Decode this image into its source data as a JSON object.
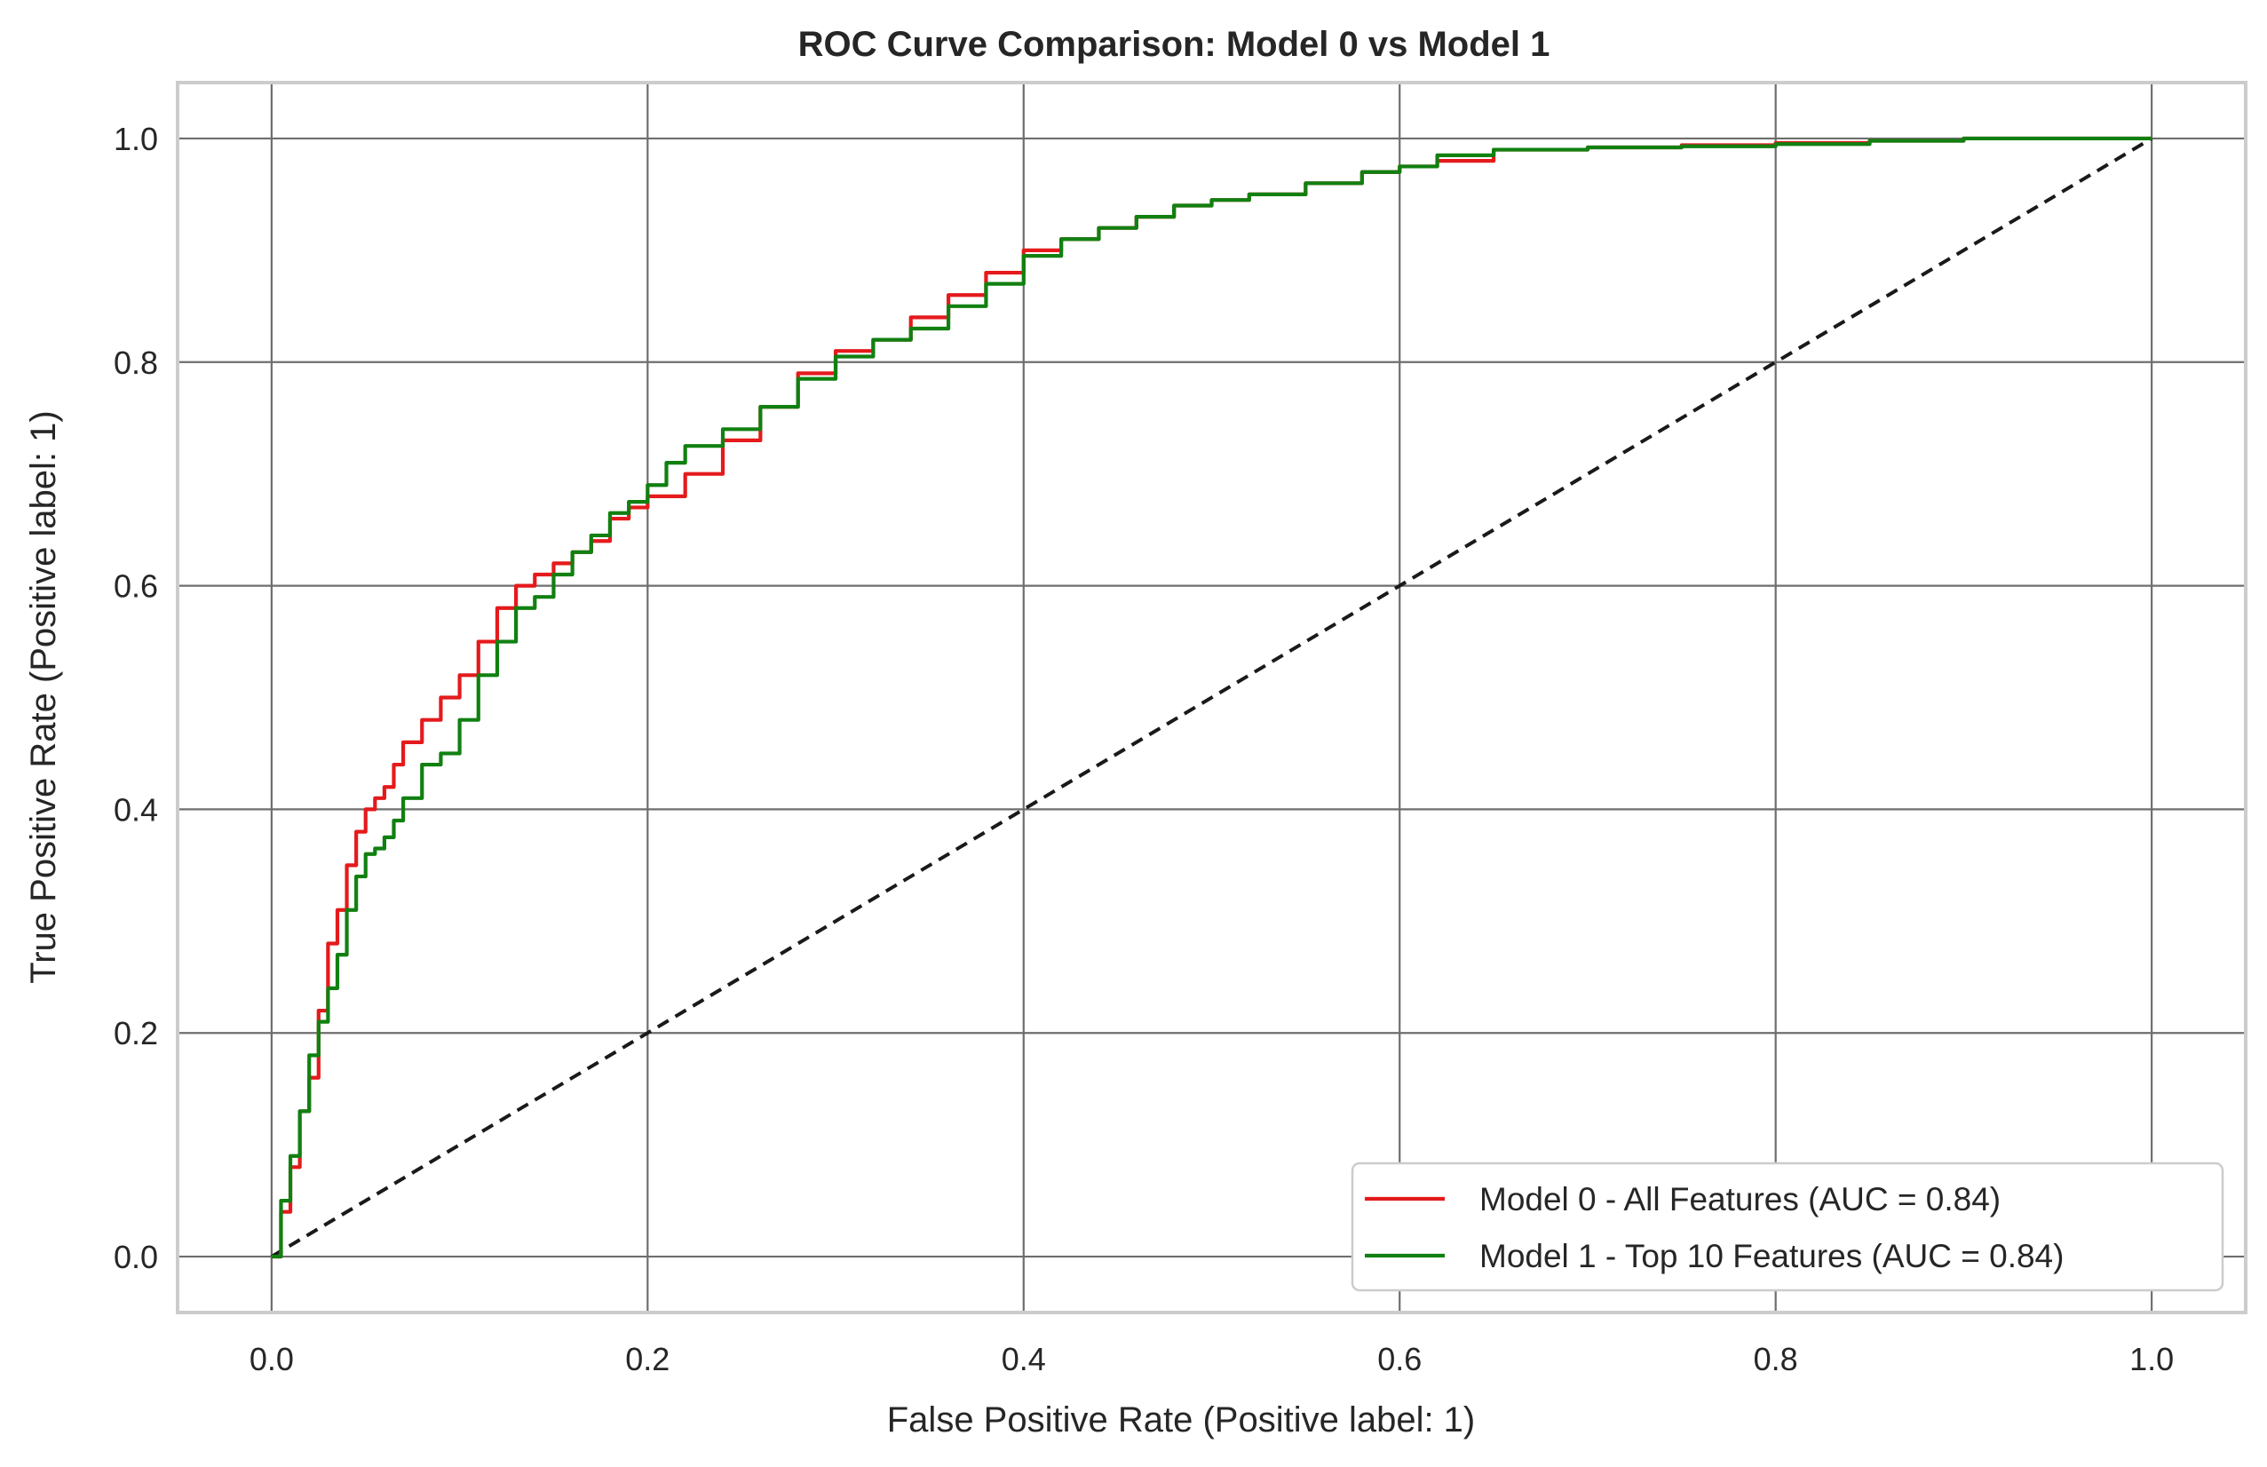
{
  "chart_data": {
    "type": "line",
    "title": "ROC Curve Comparison: Model 0 vs Model 1",
    "xlabel": "False Positive Rate (Positive label: 1)",
    "ylabel": "True Positive Rate (Positive label: 1)",
    "xlim": [
      -0.05,
      1.05
    ],
    "ylim": [
      -0.05,
      1.05
    ],
    "xticks": [
      0.0,
      0.2,
      0.4,
      0.6,
      0.8,
      1.0
    ],
    "yticks": [
      0.0,
      0.2,
      0.4,
      0.6,
      0.8,
      1.0
    ],
    "xtick_labels": [
      "0.0",
      "0.2",
      "0.4",
      "0.6",
      "0.8",
      "1.0"
    ],
    "ytick_labels": [
      "0.0",
      "0.2",
      "0.4",
      "0.6",
      "0.8",
      "1.0"
    ],
    "grid": true,
    "legend_position": "bottom-right",
    "series": [
      {
        "name": "Model 0 - All Features (AUC = 0.84)",
        "color": "#e41a1c",
        "x": [
          0.0,
          0.005,
          0.01,
          0.015,
          0.02,
          0.025,
          0.03,
          0.035,
          0.04,
          0.045,
          0.05,
          0.055,
          0.06,
          0.065,
          0.07,
          0.08,
          0.09,
          0.1,
          0.11,
          0.12,
          0.13,
          0.14,
          0.15,
          0.16,
          0.17,
          0.18,
          0.19,
          0.2,
          0.22,
          0.24,
          0.26,
          0.28,
          0.3,
          0.32,
          0.34,
          0.36,
          0.38,
          0.4,
          0.42,
          0.44,
          0.46,
          0.48,
          0.5,
          0.52,
          0.55,
          0.58,
          0.6,
          0.62,
          0.65,
          0.7,
          0.75,
          0.8,
          0.85,
          0.9,
          0.95,
          1.0
        ],
        "y": [
          0.0,
          0.04,
          0.08,
          0.13,
          0.16,
          0.22,
          0.28,
          0.31,
          0.35,
          0.38,
          0.4,
          0.41,
          0.42,
          0.44,
          0.46,
          0.48,
          0.5,
          0.52,
          0.55,
          0.58,
          0.6,
          0.61,
          0.62,
          0.63,
          0.64,
          0.66,
          0.67,
          0.68,
          0.7,
          0.73,
          0.76,
          0.79,
          0.81,
          0.82,
          0.84,
          0.86,
          0.88,
          0.9,
          0.91,
          0.92,
          0.93,
          0.94,
          0.945,
          0.95,
          0.96,
          0.97,
          0.975,
          0.98,
          0.99,
          0.992,
          0.994,
          0.996,
          0.998,
          1.0,
          1.0,
          1.0
        ]
      },
      {
        "name": "Model 1 - Top 10 Features (AUC = 0.84)",
        "color": "#118011",
        "x": [
          0.0,
          0.005,
          0.01,
          0.015,
          0.02,
          0.025,
          0.03,
          0.035,
          0.04,
          0.045,
          0.05,
          0.055,
          0.06,
          0.065,
          0.07,
          0.08,
          0.09,
          0.1,
          0.11,
          0.12,
          0.13,
          0.14,
          0.15,
          0.16,
          0.17,
          0.18,
          0.19,
          0.2,
          0.21,
          0.22,
          0.24,
          0.26,
          0.28,
          0.3,
          0.32,
          0.34,
          0.36,
          0.38,
          0.4,
          0.42,
          0.44,
          0.46,
          0.48,
          0.5,
          0.52,
          0.55,
          0.58,
          0.6,
          0.62,
          0.65,
          0.7,
          0.75,
          0.8,
          0.85,
          0.9,
          0.95,
          1.0
        ],
        "y": [
          0.0,
          0.05,
          0.09,
          0.13,
          0.18,
          0.21,
          0.24,
          0.27,
          0.31,
          0.34,
          0.36,
          0.365,
          0.375,
          0.39,
          0.41,
          0.44,
          0.45,
          0.48,
          0.52,
          0.55,
          0.58,
          0.59,
          0.61,
          0.63,
          0.645,
          0.665,
          0.675,
          0.69,
          0.71,
          0.725,
          0.74,
          0.76,
          0.785,
          0.805,
          0.82,
          0.83,
          0.85,
          0.87,
          0.895,
          0.91,
          0.92,
          0.93,
          0.94,
          0.945,
          0.95,
          0.96,
          0.97,
          0.975,
          0.985,
          0.99,
          0.992,
          0.993,
          0.995,
          0.998,
          1.0,
          1.0,
          1.0
        ]
      },
      {
        "name": "",
        "color": "#1a1a1a",
        "dashed": true,
        "x": [
          0.0,
          1.0
        ],
        "y": [
          0.0,
          1.0
        ]
      }
    ]
  }
}
